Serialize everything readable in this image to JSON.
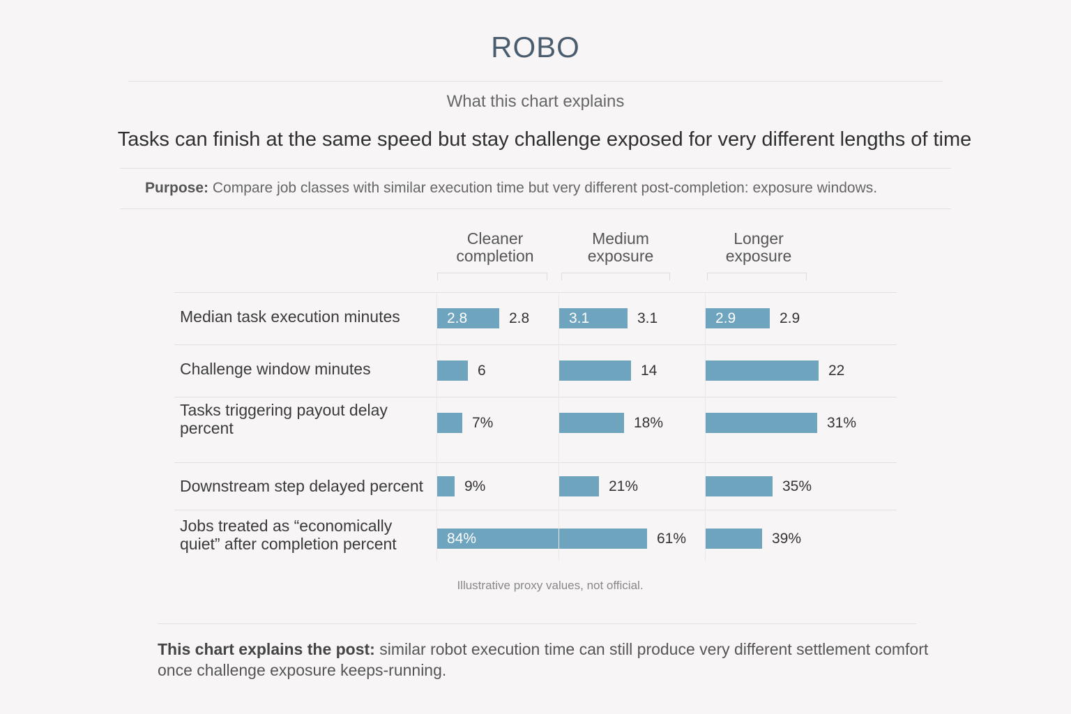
{
  "header": {
    "title": "ROBO",
    "subtitle": "What this chart explains",
    "headline": "Tasks can finish at the same speed but stay challenge exposed for very different lengths of time"
  },
  "purpose": {
    "label": "Purpose:",
    "text": "Compare job classes with similar execution time but very different post-completion: exposure windows."
  },
  "note": "Illustrative proxy values, not official.",
  "footer": {
    "label": "This chart explains the post:",
    "text": "similar robot execution time can still produce very different settlement comfort once challenge exposure keeps-running."
  },
  "colors": {
    "bar": "#6fa4bf",
    "text": "#333333",
    "background": "#f7f5f5"
  },
  "chart_data": {
    "type": "bar",
    "orientation": "horizontal",
    "title": "",
    "xlabel": "",
    "ylabel": "",
    "grid": false,
    "legend": "none",
    "categories": [
      "Median task execution minutes",
      "Challenge window minutes",
      "Tasks triggering payout delay percent",
      "Downstream step delayed percent",
      "Jobs treated as “economically quiet” after completion percent"
    ],
    "series": [
      {
        "name": "Cleaner completion",
        "values": [
          2.8,
          6,
          7,
          9,
          84
        ],
        "labels": [
          "2.8",
          "6",
          "7%",
          "9%",
          "84%"
        ]
      },
      {
        "name": "Medium exposure",
        "values": [
          3.1,
          14,
          18,
          21,
          61
        ],
        "labels": [
          "3.1",
          "14",
          "18%",
          "21%",
          "61%"
        ]
      },
      {
        "name": "Longer exposure",
        "values": [
          2.9,
          22,
          31,
          35,
          39
        ],
        "labels": [
          "2.9",
          "22",
          "31%",
          "35%",
          "39%"
        ]
      }
    ],
    "inside_labels": [
      [
        "2.8",
        "3.1",
        "2.9"
      ],
      [
        "",
        "",
        ""
      ],
      [
        "",
        "",
        ""
      ],
      [
        "",
        "",
        ""
      ],
      [
        "84%",
        "",
        ""
      ]
    ]
  }
}
